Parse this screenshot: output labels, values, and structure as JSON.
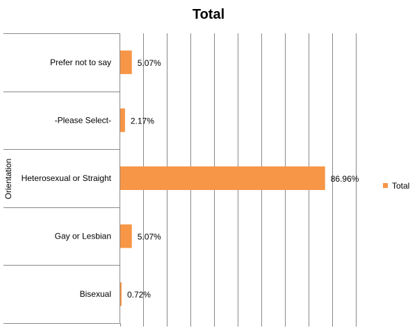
{
  "chart_data": {
    "type": "bar",
    "orientation": "horizontal",
    "title": "Total",
    "xlabel": "",
    "ylabel": "Orientation",
    "categories": [
      "Prefer not to say",
      "-Please Select-",
      "Heterosexual or Straight",
      "Gay or Lesbian",
      "Bisexual"
    ],
    "series": [
      {
        "name": "Total",
        "values": [
          5.07,
          2.17,
          86.96,
          5.07,
          0.72
        ],
        "labels": [
          "5.07%",
          "2.17%",
          "86.96%",
          "5.07%",
          "0.72%"
        ],
        "color": "#F79646"
      }
    ],
    "xlim": [
      0,
      100
    ],
    "grid": true,
    "legend": "right"
  }
}
